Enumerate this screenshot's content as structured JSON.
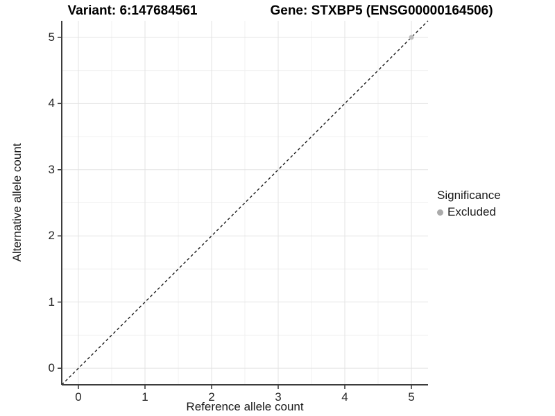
{
  "chart_data": {
    "type": "scatter",
    "title_left": "Variant: 6:147684561",
    "title_right": "Gene: STXBP5 (ENSG00000164506)",
    "xlabel": "Reference allele count",
    "ylabel": "Alternative allele count",
    "x_ticks": [
      0,
      1,
      2,
      3,
      4,
      5
    ],
    "y_ticks": [
      0,
      1,
      2,
      3,
      4,
      5
    ],
    "xlim": [
      -0.25,
      5.25
    ],
    "ylim": [
      -0.25,
      5.25
    ],
    "grid": "major and minor gridlines, white background",
    "series": [
      {
        "name": "Excluded",
        "color": "#bdbdbd",
        "points": [
          {
            "x": 5,
            "y": 5
          }
        ]
      }
    ],
    "reference_line": {
      "type": "y=x",
      "style": "dashed",
      "color": "#1a1a1a"
    },
    "legend": {
      "title": "Significance",
      "position": "right",
      "items": [
        {
          "label": "Excluded",
          "color": "#ababab"
        }
      ]
    }
  },
  "colors": {
    "background": "#ffffff",
    "grid_major": "#e3e3e3",
    "grid_minor": "#f0f0f0",
    "axis_line": "#3c3c3c",
    "tick_mark": "#333333",
    "text": "#1a1a1a"
  }
}
